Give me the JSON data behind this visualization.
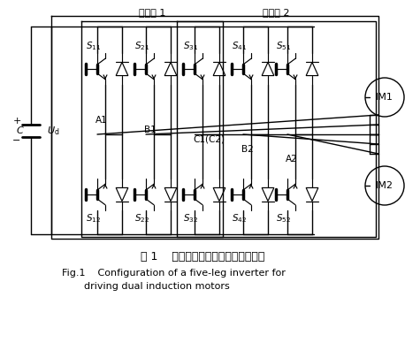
{
  "title_cn": "图 1    驱动双异步电机的五桥臂逆变器",
  "title_en_line1": "Fig.1    Configuration of a five-leg inverter for",
  "title_en_line2": "driving dual induction motors",
  "bg_color": "#ffffff",
  "line_color": "#000000",
  "fig_width": 4.58,
  "fig_height": 4.05,
  "dpi": 100,
  "inverter1_label": "逆变器 1",
  "inverter2_label": "逆变器 2",
  "switch_top": [
    "$S_{11}$",
    "$S_{21}$",
    "$S_{31}$",
    "$S_{41}$",
    "$S_{51}$"
  ],
  "switch_bot": [
    "$S_{12}$",
    "$S_{22}$",
    "$S_{32}$",
    "$S_{42}$",
    "$S_{52}$"
  ],
  "node_labels": [
    "A1",
    "B1",
    "C1(C2)",
    "B2",
    "A2"
  ],
  "motor_labels": [
    "IM1",
    "IM2"
  ]
}
